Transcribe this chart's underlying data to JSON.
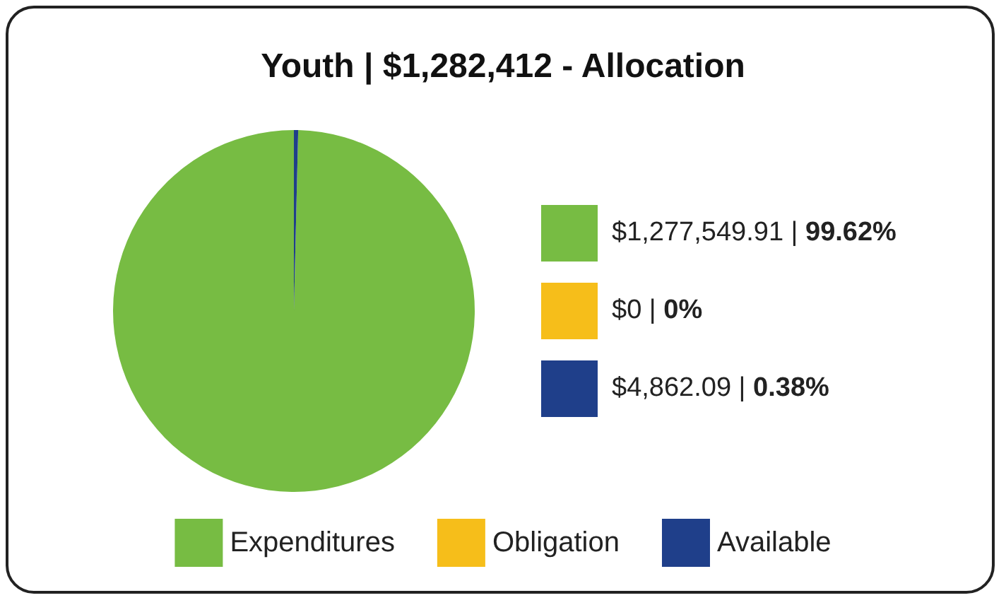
{
  "chart_data": {
    "type": "pie",
    "title": "Youth | $1,282,412 - Allocation",
    "categories": [
      "Expenditures",
      "Obligation",
      "Available"
    ],
    "values": [
      99.62,
      0,
      0.38
    ],
    "colors": [
      "#77bc43",
      "#f6be1a",
      "#1f3f8a"
    ],
    "annotations": [
      "$1,277,549.91 | 99.62%",
      "$0 | 0%",
      "$4,862.09 | 0.38%"
    ],
    "legend": "bottom"
  }
}
